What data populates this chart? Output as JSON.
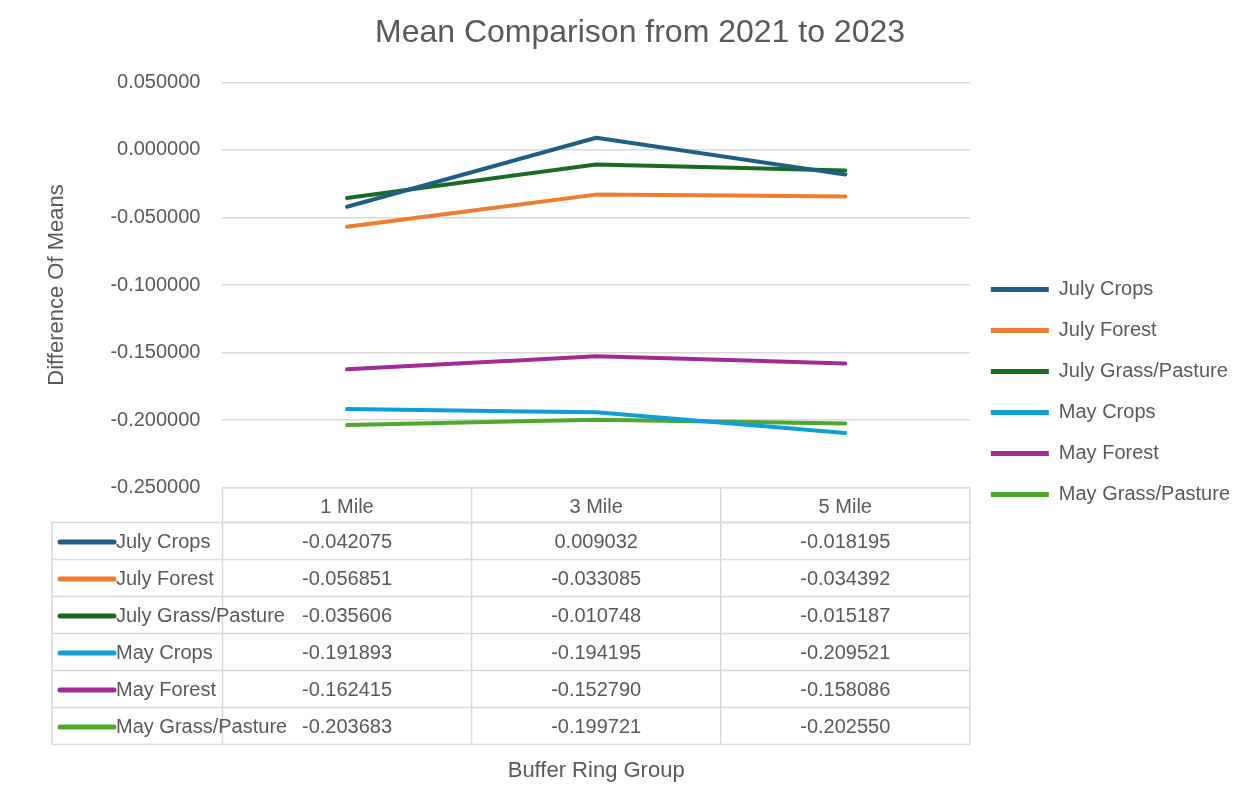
{
  "chart_data": {
    "type": "line",
    "title": "Mean Comparison from 2021 to 2023",
    "annotations": [
      "Buffer Ring Group"
    ],
    "ylabel": "Difference Of Means",
    "categories": [
      "1 Mile",
      "3 Mile",
      "5 Mile"
    ],
    "series": [
      {
        "name": "July Crops",
        "color": "#1f5f85",
        "values": [
          -0.042075,
          0.009032,
          -0.018195
        ],
        "value_labels": [
          "-0.042075",
          "0.009032",
          "-0.018195"
        ]
      },
      {
        "name": "July Forest",
        "color": "#ed7d31",
        "values": [
          -0.056851,
          -0.033085,
          -0.034392
        ],
        "value_labels": [
          "-0.056851",
          "-0.033085",
          "-0.034392"
        ]
      },
      {
        "name": "July Grass/Pasture",
        "color": "#196b24",
        "values": [
          -0.035606,
          -0.010748,
          -0.015187
        ],
        "value_labels": [
          "-0.035606",
          "-0.010748",
          "-0.015187"
        ]
      },
      {
        "name": "May Crops",
        "color": "#0f9ed5",
        "values": [
          -0.191893,
          -0.194195,
          -0.209521
        ],
        "value_labels": [
          "-0.191893",
          "-0.194195",
          "-0.209521"
        ]
      },
      {
        "name": "May Forest",
        "color": "#a02b93",
        "values": [
          -0.162415,
          -0.15279,
          -0.158086
        ],
        "value_labels": [
          "-0.162415",
          "-0.152790",
          "-0.158086"
        ]
      },
      {
        "name": "May Grass/Pasture",
        "color": "#4ea72e",
        "values": [
          -0.203683,
          -0.199721,
          -0.20255
        ],
        "value_labels": [
          "-0.203683",
          "-0.199721",
          "-0.202550"
        ]
      }
    ],
    "ylim": [
      -0.25,
      0.05
    ],
    "yticks": [
      {
        "value": -0.25,
        "label": "-0.250000"
      },
      {
        "value": -0.2,
        "label": "-0.200000"
      },
      {
        "value": -0.15,
        "label": "-0.150000"
      },
      {
        "value": -0.1,
        "label": "-0.100000"
      },
      {
        "value": -0.05,
        "label": "-0.050000"
      },
      {
        "value": 0,
        "label": "0.000000"
      },
      {
        "value": 0.05,
        "label": "0.050000"
      }
    ],
    "grid": "y",
    "legend": "right",
    "marker": "none",
    "line_style": "solid"
  }
}
